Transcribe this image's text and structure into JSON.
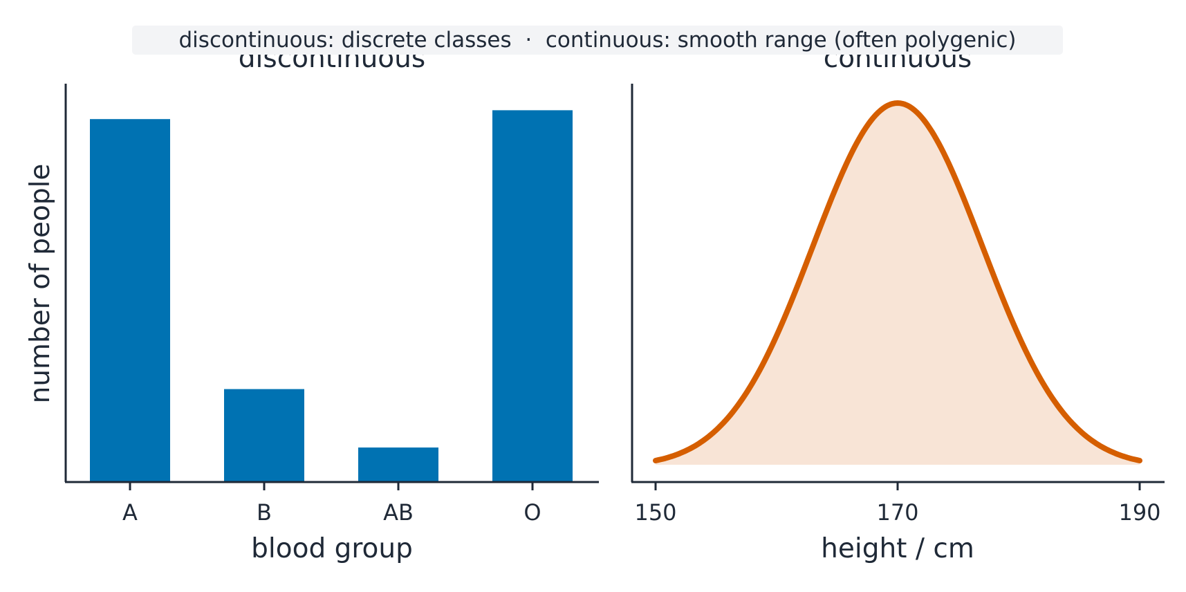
{
  "caption": "discontinuous: discrete classes  ·  continuous: smooth range (often polygenic)",
  "colors": {
    "text": "#1f2937",
    "axis": "#1f2937",
    "bar": "#0072b2",
    "curve": "#d55e00",
    "fill": "#f8e4d6",
    "caption_bg": "#f3f4f6"
  },
  "chart_data": [
    {
      "type": "bar",
      "title": "discontinuous",
      "xlabel": "blood group",
      "ylabel": "number of people",
      "categories": [
        "A",
        "B",
        "AB",
        "O"
      ],
      "values": [
        41,
        10.5,
        3.9,
        42
      ],
      "ylim": [
        0,
        45
      ],
      "grid": false,
      "yticks_shown": false
    },
    {
      "type": "area",
      "title": "continuous",
      "xlabel": "height / cm",
      "ylabel": "",
      "x_ticks": [
        150,
        170,
        190
      ],
      "xlim": [
        149,
        193
      ],
      "distribution": {
        "shape": "normal",
        "mean": 170,
        "sd": 7
      },
      "x_range": [
        150,
        190
      ],
      "grid": false,
      "yticks_shown": false
    }
  ]
}
